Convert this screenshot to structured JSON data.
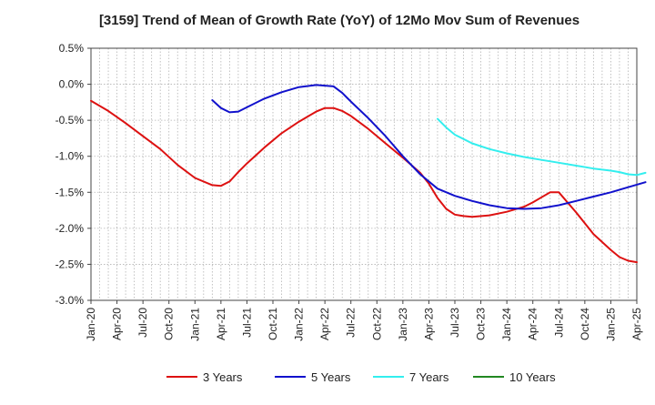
{
  "chart_data": {
    "type": "line",
    "title": "[3159]  Trend of Mean of Growth Rate (YoY) of 12Mo Mov Sum of Revenues",
    "xlabel": "",
    "ylabel": "",
    "ylim": [
      -3.0,
      0.5
    ],
    "yticks": [
      0.5,
      0.0,
      -0.5,
      -1.0,
      -1.5,
      -2.0,
      -2.5,
      -3.0
    ],
    "ytick_labels": [
      "0.5%",
      "0.0%",
      "-0.5%",
      "-1.0%",
      "-1.5%",
      "-2.0%",
      "-2.5%",
      "-3.0%"
    ],
    "x_start": "Jan-20",
    "x_months_span": 63,
    "xtick_labels": [
      "Jan-20",
      "Apr-20",
      "Jul-20",
      "Oct-20",
      "Jan-21",
      "Apr-21",
      "Jul-21",
      "Oct-21",
      "Jan-22",
      "Apr-22",
      "Jul-22",
      "Oct-22",
      "Jan-23",
      "Apr-23",
      "Jul-23",
      "Oct-23",
      "Jan-24",
      "Apr-24",
      "Jul-24",
      "Oct-24",
      "Jan-25",
      "Apr-25"
    ],
    "grid": true,
    "legend_position": "bottom",
    "series": [
      {
        "name": "3 Years",
        "color": "#dd1111",
        "x": [
          0,
          2,
          4,
          6,
          8,
          10,
          12,
          14,
          15,
          16,
          17,
          18,
          20,
          22,
          24,
          26,
          27,
          28,
          29,
          30,
          32,
          34,
          36,
          38,
          39,
          40,
          41,
          42,
          43,
          44,
          46,
          48,
          50,
          51,
          52,
          53,
          54,
          56,
          58,
          60,
          61,
          62,
          63
        ],
        "values": [
          -0.23,
          -0.37,
          -0.54,
          -0.72,
          -0.9,
          -1.12,
          -1.3,
          -1.4,
          -1.41,
          -1.35,
          -1.22,
          -1.1,
          -0.88,
          -0.68,
          -0.52,
          -0.38,
          -0.33,
          -0.33,
          -0.37,
          -0.44,
          -0.62,
          -0.82,
          -1.02,
          -1.23,
          -1.38,
          -1.58,
          -1.73,
          -1.81,
          -1.83,
          -1.84,
          -1.82,
          -1.77,
          -1.7,
          -1.64,
          -1.57,
          -1.5,
          -1.5,
          -1.78,
          -2.08,
          -2.3,
          -2.4,
          -2.45,
          -2.47
        ]
      },
      {
        "name": "5 Years",
        "color": "#1111cc",
        "x": [
          14,
          15,
          16,
          17,
          18,
          20,
          22,
          24,
          26,
          28,
          29,
          30,
          32,
          34,
          36,
          38,
          40,
          42,
          44,
          46,
          48,
          50,
          52,
          54,
          56,
          58,
          60,
          62,
          64
        ],
        "values": [
          -0.22,
          -0.33,
          -0.39,
          -0.38,
          -0.32,
          -0.2,
          -0.11,
          -0.04,
          -0.01,
          -0.03,
          -0.12,
          -0.24,
          -0.47,
          -0.72,
          -1.0,
          -1.25,
          -1.45,
          -1.55,
          -1.62,
          -1.68,
          -1.72,
          -1.73,
          -1.72,
          -1.68,
          -1.62,
          -1.56,
          -1.5,
          -1.43,
          -1.36
        ]
      },
      {
        "name": "7 Years",
        "color": "#33eeee",
        "x": [
          40,
          41,
          42,
          44,
          46,
          48,
          50,
          52,
          54,
          56,
          58,
          60,
          61,
          62,
          63,
          64
        ],
        "values": [
          -0.48,
          -0.6,
          -0.7,
          -0.82,
          -0.9,
          -0.96,
          -1.01,
          -1.05,
          -1.09,
          -1.13,
          -1.17,
          -1.2,
          -1.22,
          -1.25,
          -1.26,
          -1.23
        ]
      },
      {
        "name": "10 Years",
        "color": "#228822",
        "x": [],
        "values": []
      }
    ]
  }
}
